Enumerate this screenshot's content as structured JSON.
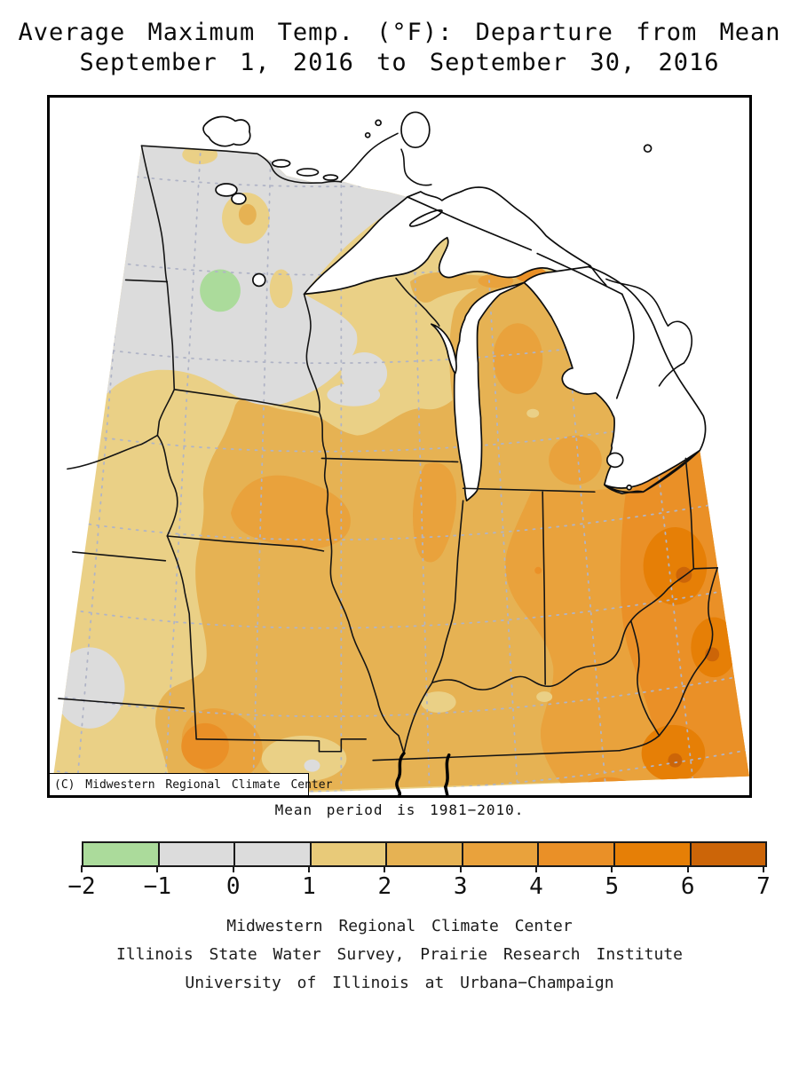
{
  "title": {
    "line1": "Average Maximum Temp. (°F): Departure from Mean",
    "line2": "September 1, 2016 to September 30, 2016"
  },
  "map": {
    "watermark": "(C) Midwestern Regional Climate Center",
    "note": "Mean period is 1981−2010."
  },
  "colorbar": {
    "labels": [
      "−2",
      "−1",
      "0",
      "1",
      "2",
      "3",
      "4",
      "5",
      "6",
      "7"
    ],
    "bin_colors": [
      "#abdb9b",
      "#dcdcdc",
      "#dcdcdc",
      "#e8ca79",
      "#e6b253",
      "#e9a23c",
      "#ea9027",
      "#e67f06",
      "#cc6508"
    ],
    "border_color": "#1a1a1a"
  },
  "footer": {
    "line1": "Midwestern Regional Climate Center",
    "line2": "Illinois State Water Survey, Prairie Research Institute",
    "line3": "University of Illinois at Urbana−Champaign"
  },
  "chart_data": {
    "type": "heatmap",
    "title": "Average Maximum Temp. (°F): Departure from Mean",
    "subtitle": "September 1, 2016 to September 30, 2016",
    "units": "°F departure from 1981−2010 mean",
    "note": "Mean period is 1981−2010.",
    "legend_position": "bottom",
    "legend_bins": [
      {
        "range": [
          -2,
          -1
        ],
        "color": "#abdb9b"
      },
      {
        "range": [
          -1,
          0
        ],
        "color": "#dcdcdc"
      },
      {
        "range": [
          0,
          1
        ],
        "color": "#dcdcdc"
      },
      {
        "range": [
          1,
          2
        ],
        "color": "#e8ca79"
      },
      {
        "range": [
          2,
          3
        ],
        "color": "#e6b253"
      },
      {
        "range": [
          3,
          4
        ],
        "color": "#e9a23c"
      },
      {
        "range": [
          4,
          5
        ],
        "color": "#ea9027"
      },
      {
        "range": [
          5,
          6
        ],
        "color": "#e67f06"
      },
      {
        "range": [
          6,
          7
        ],
        "color": "#cc6508"
      }
    ],
    "regions_approx": [
      {
        "area": "Northwest Minnesota / Dakotas strip",
        "value_f": "0 to 1"
      },
      {
        "area": "West-central Minnesota spot",
        "value_f": "-2 to -1"
      },
      {
        "area": "North-central Minnesota patches",
        "value_f": "1 to 2"
      },
      {
        "area": "Wisconsin / western Iowa / Kansas edge",
        "value_f": "1 to 2"
      },
      {
        "area": "Iowa / northern Missouri / Illinois / Indiana / lower Michigan",
        "value_f": "2 to 3"
      },
      {
        "area": "Southern Iowa, north Illinois, central Missouri, lower Michigan blobs",
        "value_f": "3 to 4"
      },
      {
        "area": "Ohio, West Virginia, eastern Kentucky, southwest Missouri spot",
        "value_f": "4 to 5"
      },
      {
        "area": "Eastern Ohio / southern West Virginia cores",
        "value_f": "5 to 6"
      },
      {
        "area": "Small cores in eastern Ohio / WV-VA border",
        "value_f": "6 to 7"
      }
    ]
  }
}
